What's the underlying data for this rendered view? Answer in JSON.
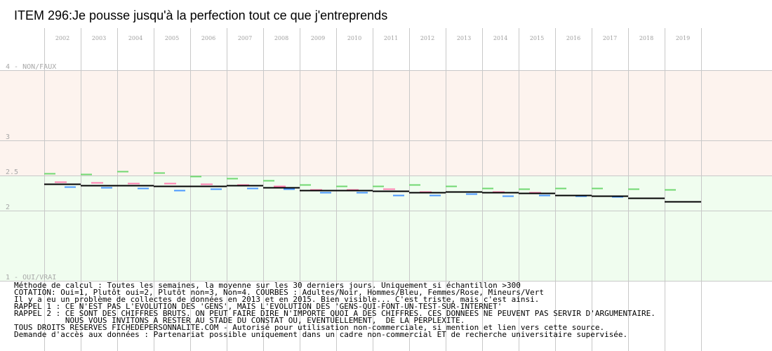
{
  "title": "ITEM 296:Je pousse jusqu'à la perfection tout ce que j'entreprends",
  "colors": {
    "band_upper": "#fdf3ee",
    "band_lower": "#f0fdef",
    "grid": "#c8c8c8",
    "adultes": "#000000",
    "hommes": "#4a98ff",
    "femmes": "#ff80b0",
    "mineurs": "#70d870"
  },
  "chart_data": {
    "type": "line",
    "title": "ITEM 296:Je pousse jusqu'à la perfection tout ce que j'entreprends",
    "xlabel": "",
    "ylabel": "",
    "x": [
      "2002",
      "2003",
      "2004",
      "2005",
      "2006",
      "2007",
      "2008",
      "2009",
      "2010",
      "2011",
      "2012",
      "2013",
      "2014",
      "2015",
      "2016",
      "2017",
      "2018",
      "2019"
    ],
    "ylim": [
      1,
      4.05
    ],
    "yticks": [
      {
        "value": 4,
        "label": "4 - NON/FAUX"
      },
      {
        "value": 3,
        "label": "3"
      },
      {
        "value": 2.5,
        "label": "2.5"
      },
      {
        "value": 2,
        "label": "2"
      },
      {
        "value": 1,
        "label": "1 - OUI/VRAI"
      }
    ],
    "grid": true,
    "series": [
      {
        "name": "Adultes",
        "color": "#000000",
        "values": [
          2.38,
          2.36,
          2.36,
          2.35,
          2.35,
          2.36,
          2.33,
          2.29,
          2.29,
          2.28,
          2.26,
          2.27,
          2.26,
          2.25,
          2.22,
          2.21,
          2.18,
          2.13
        ]
      },
      {
        "name": "Hommes",
        "color": "#4a98ff",
        "values": [
          2.34,
          2.33,
          2.32,
          2.29,
          2.31,
          2.32,
          2.31,
          2.26,
          2.26,
          2.22,
          2.22,
          2.24,
          2.21,
          2.22,
          2.21,
          2.2,
          2.18,
          2.13
        ]
      },
      {
        "name": "Femmes",
        "color": "#ff80b0",
        "values": [
          2.41,
          2.4,
          2.39,
          2.39,
          2.38,
          2.37,
          2.35,
          2.3,
          2.3,
          2.31,
          2.27,
          2.27,
          2.27,
          2.26,
          2.22,
          2.21,
          2.18,
          2.13
        ]
      },
      {
        "name": "Mineurs",
        "color": "#70d870",
        "values": [
          2.53,
          2.52,
          2.56,
          2.54,
          2.49,
          2.46,
          2.43,
          2.37,
          2.35,
          2.35,
          2.37,
          2.35,
          2.32,
          2.31,
          2.32,
          2.32,
          2.31,
          2.3
        ]
      }
    ]
  },
  "notes": [
    "Méthode de calcul : Toutes les semaines, la moyenne sur les 30 derniers jours. Uniquement si échantillon >300",
    "COTATION: Oui=1, Plutôt oui=2, Plutôt non=3, Non=4. COURBES : Adultes/Noir, Hommes/Bleu, Femmes/Rose, Mineurs/Vert",
    "Il y a eu un problème de collectes de données en 2013 et en 2015. Bien visible... C'est triste, mais c'est ainsi.",
    "RAPPEL 1 : CE N'EST PAS L'EVOLUTION DES 'GENS', MAIS L'EVOLUTION DES 'GENS-QUI-FONT-UN-TEST-SUR-INTERNET'",
    "RAPPEL 2 : CE SONT DES CHIFFRES BRUTS. ON PEUT FAIRE DIRE N'IMPORTE QUOI A DES CHIFFRES. CES DONNEES NE PEUVENT PAS SERVIR D'ARGUMENTAIRE.",
    "           NOUS VOUS INVITONS A RESTER AU STADE DU CONSTAT OU, EVENTUELLEMENT,  DE LA PERPLEXITE.",
    "TOUS DROITS RESERVES FICHEDEPERSONNALITE.COM - Autorisé pour utilisation non-commerciale, si mention et lien vers cette source.",
    "Demande d'accès aux données : Partenariat possible uniquement dans un cadre non-commercial ET de recherche universitaire supervisée."
  ]
}
